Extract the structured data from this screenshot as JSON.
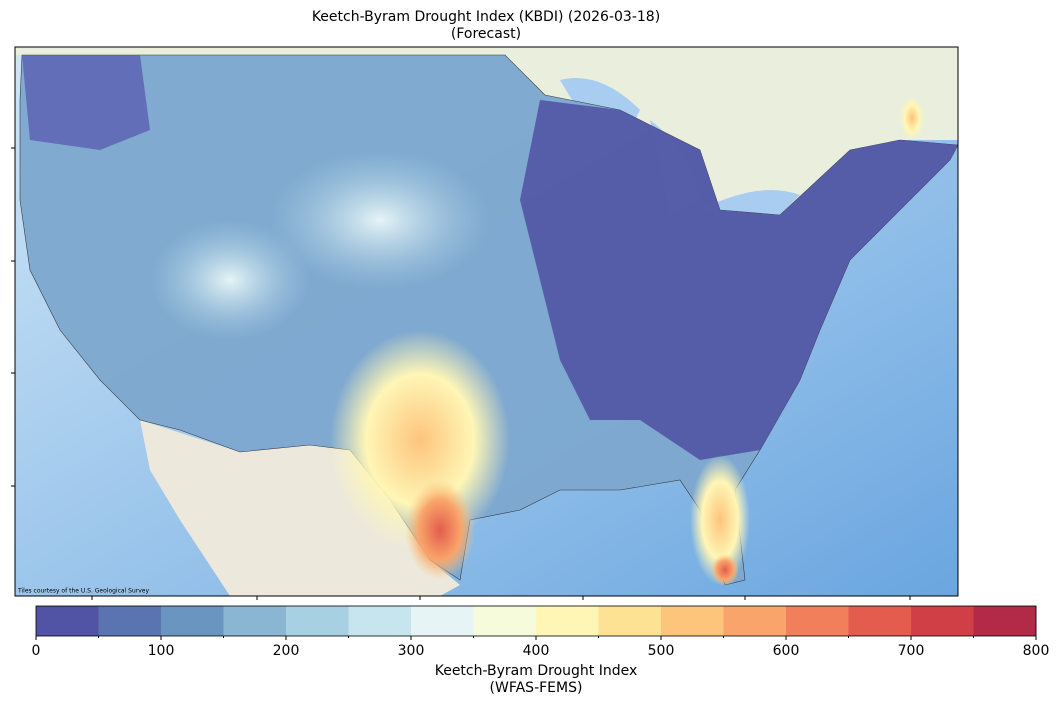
{
  "title": [
    "Keetch-Byram Drought Index (KBDI) (2026-03-18)",
    "(Forecast)"
  ],
  "attribution": "Tiles courtesy of the U.S. Geological Survey",
  "colorbar": {
    "label": [
      "Keetch-Byram Drought Index",
      "(WFAS-FEMS)"
    ],
    "lim": [
      0,
      800
    ],
    "ticks": [
      0,
      100,
      200,
      300,
      400,
      500,
      600,
      700,
      800
    ],
    "bounds": [
      0,
      50,
      100,
      150,
      200,
      250,
      300,
      350,
      400,
      450,
      500,
      550,
      600,
      650,
      700,
      750,
      800
    ],
    "colors": [
      "#5154a4",
      "#5a73b1",
      "#6a95c1",
      "#8ab6d3",
      "#a8d0e3",
      "#c6e5ee",
      "#e6f4f6",
      "#f6fbdc",
      "#fff6b6",
      "#fee293",
      "#fdc47c",
      "#f9a46a",
      "#f17f5b",
      "#e35c4d",
      "#cf3f45",
      "#b22a48"
    ]
  }
}
